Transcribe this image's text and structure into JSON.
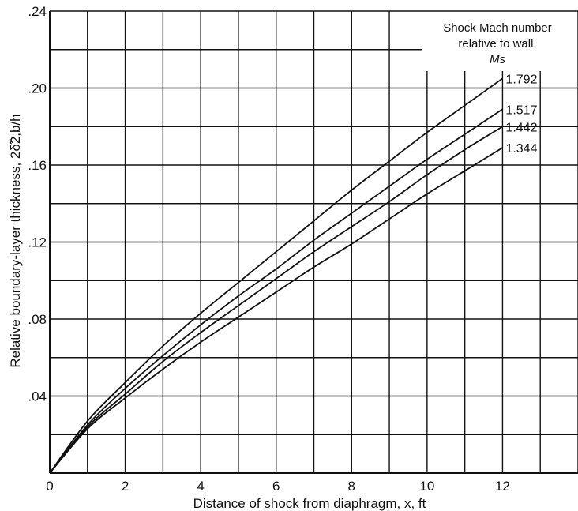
{
  "chart_data": {
    "type": "line",
    "xlabel": "Distance of shock from diaphragm, x, ft",
    "ylabel": "Relative boundary-layer thickness, 2δ̃2,b/h",
    "xlim": [
      0,
      14
    ],
    "ylim": [
      0,
      0.24
    ],
    "grid": true,
    "x_ticks": [
      0,
      1,
      2,
      3,
      4,
      5,
      6,
      7,
      8,
      9,
      10,
      11,
      12,
      13,
      14
    ],
    "x_tick_labels": [
      "0",
      "",
      "2",
      "",
      "4",
      "",
      "6",
      "",
      "8",
      "",
      "10",
      "",
      "12",
      "",
      ""
    ],
    "y_ticks": [
      0,
      0.02,
      0.04,
      0.06,
      0.08,
      0.1,
      0.12,
      0.14,
      0.16,
      0.18,
      0.2,
      0.22,
      0.24
    ],
    "y_tick_labels": [
      "",
      "",
      ".04",
      "",
      ".08",
      "",
      ".12",
      "",
      ".16",
      "",
      ".20",
      "",
      ".24"
    ],
    "legend_title": [
      "Shock Mach number",
      "relative to wall,",
      "Ms"
    ],
    "legend_placement": "top-right",
    "x": [
      0,
      1,
      2,
      3,
      4,
      5,
      6,
      7,
      8,
      9,
      10,
      11,
      12
    ],
    "series": [
      {
        "name": "1.792",
        "values": [
          0,
          0.027,
          0.047,
          0.066,
          0.083,
          0.099,
          0.115,
          0.131,
          0.147,
          0.162,
          0.177,
          0.191,
          0.205
        ]
      },
      {
        "name": "1.517",
        "values": [
          0,
          0.025,
          0.044,
          0.061,
          0.077,
          0.092,
          0.106,
          0.121,
          0.135,
          0.149,
          0.163,
          0.176,
          0.189
        ]
      },
      {
        "name": "1.442",
        "values": [
          0,
          0.024,
          0.041,
          0.058,
          0.073,
          0.087,
          0.101,
          0.115,
          0.128,
          0.141,
          0.155,
          0.168,
          0.18
        ]
      },
      {
        "name": "1.344",
        "values": [
          0,
          0.023,
          0.039,
          0.054,
          0.068,
          0.081,
          0.094,
          0.107,
          0.119,
          0.132,
          0.145,
          0.157,
          0.169
        ]
      }
    ]
  }
}
